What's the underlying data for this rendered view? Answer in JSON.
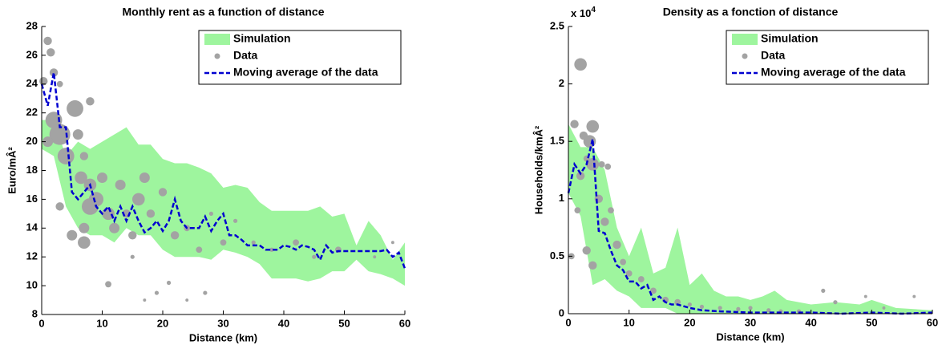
{
  "chart_data": [
    {
      "type": "combo",
      "title": "Monthly rent as a function of distance",
      "xlabel": "Distance (km)",
      "ylabel": "Euro/mÂ²",
      "xlim": [
        0,
        60
      ],
      "xticks": [
        0,
        10,
        20,
        30,
        40,
        50,
        60
      ],
      "ylim": [
        8,
        28
      ],
      "yticks": [
        8,
        10,
        12,
        14,
        16,
        18,
        20,
        22,
        24,
        26,
        28
      ],
      "legend": "upper right",
      "series": [
        {
          "name": "Simulation",
          "kind": "band",
          "color": "#9ef59e",
          "x": [
            0,
            2,
            4,
            6,
            8,
            10,
            12,
            14,
            16,
            18,
            20,
            22,
            24,
            26,
            28,
            30,
            32,
            34,
            36,
            38,
            40,
            42,
            44,
            46,
            48,
            50,
            52,
            54,
            56,
            58,
            60
          ],
          "lower": [
            19.5,
            19,
            15.5,
            14,
            13.5,
            13.5,
            13,
            14,
            13.5,
            13.5,
            12.5,
            12,
            12,
            12,
            11.8,
            12.5,
            12.3,
            12,
            11.5,
            10.5,
            10.5,
            10.5,
            10.3,
            10.5,
            11,
            11,
            11.8,
            11,
            10.8,
            10.5,
            10
          ],
          "upper": [
            21.5,
            21.5,
            19,
            20,
            19.5,
            20,
            20.5,
            21,
            19.8,
            19.8,
            18.8,
            18.5,
            18.5,
            18.2,
            17.8,
            16.8,
            17,
            16.8,
            15.8,
            15.2,
            15.2,
            15.2,
            15.2,
            15.5,
            14.8,
            15,
            12.8,
            14.5,
            13.5,
            11.8,
            13
          ]
        },
        {
          "name": "Data",
          "kind": "scatter",
          "color": "#a3a3a3",
          "x": [
            1,
            1.5,
            0.3,
            2,
            3,
            2,
            3,
            4,
            5.5,
            1,
            6,
            7,
            8,
            6.5,
            8,
            7,
            7,
            9,
            10,
            11,
            12,
            13,
            14,
            15,
            16,
            17,
            18,
            11,
            20,
            22,
            24,
            19,
            21,
            26,
            28,
            30,
            32,
            35,
            38,
            42,
            45,
            49,
            55,
            58,
            3,
            5,
            8,
            17,
            24,
            27,
            15
          ],
          "values": [
            27,
            26.2,
            24.2,
            24.8,
            24,
            21.5,
            20.5,
            19,
            22.3,
            20,
            20.5,
            19,
            22.8,
            17.5,
            15.5,
            14,
            13,
            16,
            17.5,
            15,
            14,
            17,
            15,
            13.5,
            16,
            17.5,
            15,
            10.1,
            16.5,
            13.5,
            14,
            9.5,
            10.2,
            12.5,
            15,
            13,
            14.5,
            13,
            12.5,
            13,
            12,
            12.5,
            12,
            13,
            15.5,
            13.5,
            17,
            9,
            9,
            9.5,
            12
          ],
          "sizes": [
            4,
            4,
            4,
            4,
            3,
            8,
            10,
            8,
            8,
            5,
            5,
            4,
            4,
            6,
            8,
            5,
            6,
            7,
            5,
            6,
            5,
            5,
            4,
            4,
            6,
            5,
            4,
            3,
            4,
            4,
            3,
            2,
            2,
            3,
            2,
            3,
            2,
            2,
            2,
            3,
            2,
            3,
            1.5,
            1.5,
            4,
            5,
            6,
            1.5,
            1.5,
            2,
            2
          ]
        },
        {
          "name": "Moving average of the data",
          "kind": "line",
          "color": "#0000d0",
          "x": [
            0,
            1,
            2,
            3,
            4,
            5,
            6,
            7,
            8,
            9,
            10,
            11,
            12,
            13,
            14,
            15,
            16,
            17,
            18,
            19,
            20,
            21,
            22,
            23,
            24,
            25,
            26,
            27,
            28,
            29,
            30,
            31,
            32,
            33,
            34,
            35,
            36,
            37,
            38,
            39,
            40,
            41,
            42,
            43,
            44,
            45,
            46,
            47,
            48,
            49,
            50,
            52,
            54,
            56,
            57,
            58,
            59,
            60
          ],
          "values": [
            24,
            22.5,
            24.8,
            21,
            21,
            16.5,
            16,
            16.5,
            17,
            15.5,
            15,
            15.5,
            14.5,
            15.5,
            14.5,
            15.5,
            14.5,
            13.7,
            14,
            14.5,
            13.8,
            14.5,
            16,
            14.5,
            14,
            14,
            14,
            14.8,
            13.8,
            14.5,
            15,
            13.5,
            13.5,
            13.2,
            12.8,
            12.8,
            12.8,
            12.5,
            12.5,
            12.5,
            12.8,
            12.7,
            12.5,
            12.8,
            12.7,
            12.5,
            11.8,
            12.8,
            12.3,
            12.4,
            12.4,
            12.4,
            12.4,
            12.4,
            12.5,
            12,
            12.3,
            11.2
          ]
        }
      ]
    },
    {
      "type": "combo",
      "title": "Density as a fonction of distance",
      "xlabel": "Distance (km)",
      "ylabel": "Households/kmÂ²",
      "y_exponent": {
        "base": "x 10",
        "power": "4"
      },
      "xlim": [
        0,
        60
      ],
      "xticks": [
        0,
        10,
        20,
        30,
        40,
        50,
        60
      ],
      "ylim": [
        0,
        2.5
      ],
      "yticks": [
        0,
        0.5,
        1,
        1.5,
        2,
        2.5
      ],
      "legend": "upper right",
      "series": [
        {
          "name": "Simulation",
          "kind": "band",
          "color": "#9ef59e",
          "x": [
            0,
            2,
            4,
            6,
            8,
            10,
            12,
            14,
            16,
            18,
            20,
            22,
            24,
            26,
            28,
            30,
            32,
            34,
            36,
            40,
            44,
            48,
            50,
            54,
            60
          ],
          "lower": [
            1.05,
            0.85,
            0.25,
            0.3,
            0.2,
            0.15,
            0.05,
            0.05,
            0.05,
            0,
            0,
            0,
            0,
            0,
            0,
            0,
            0,
            0,
            0,
            0,
            0,
            0,
            0,
            0,
            0
          ],
          "upper": [
            1.65,
            1.45,
            1.45,
            1.25,
            0.75,
            0.5,
            0.75,
            0.35,
            0.4,
            0.75,
            0.25,
            0.35,
            0.2,
            0.15,
            0.15,
            0.12,
            0.15,
            0.2,
            0.12,
            0.08,
            0.1,
            0.08,
            0.12,
            0.05,
            0.03
          ]
        },
        {
          "name": "Data",
          "kind": "scatter",
          "color": "#a3a3a3",
          "x": [
            1,
            2,
            3.5,
            4,
            4,
            2.5,
            3,
            5.5,
            6.5,
            2,
            6,
            7,
            8,
            3,
            4,
            0.5,
            9,
            10,
            12,
            14,
            16,
            18,
            20,
            22,
            25,
            28,
            30,
            33,
            35,
            38,
            42,
            44,
            49,
            52,
            57,
            1.5,
            5
          ],
          "values": [
            1.65,
            2.17,
            1.5,
            1.63,
            1.3,
            1.55,
            1.35,
            1.3,
            1.28,
            1.2,
            0.8,
            0.9,
            0.6,
            0.55,
            0.42,
            0.5,
            0.45,
            0.35,
            0.3,
            0.2,
            0.12,
            0.1,
            0.08,
            0.06,
            0.05,
            0.04,
            0.05,
            0.03,
            0.02,
            0.02,
            0.2,
            0.1,
            0.15,
            0.05,
            0.15,
            0.9,
            1
          ],
          "sizes": [
            4,
            6,
            6,
            6,
            6,
            4,
            3,
            3,
            3,
            4,
            4,
            3,
            4,
            4,
            4,
            3,
            3,
            3,
            3,
            3,
            3,
            3,
            2,
            2,
            2,
            2,
            2,
            2,
            2,
            2,
            2,
            2,
            1.5,
            1.5,
            1.5,
            3,
            4
          ]
        },
        {
          "name": "Moving average of the data",
          "kind": "line",
          "color": "#0000d0",
          "x": [
            0,
            1,
            2,
            3,
            4,
            5,
            6,
            7,
            8,
            9,
            10,
            11,
            12,
            13,
            14,
            15,
            16,
            17,
            18,
            20,
            22,
            25,
            30,
            35,
            40,
            45,
            50,
            55,
            60
          ],
          "values": [
            1.05,
            1.3,
            1.22,
            1.3,
            1.52,
            0.72,
            0.7,
            0.55,
            0.42,
            0.38,
            0.28,
            0.28,
            0.22,
            0.25,
            0.12,
            0.15,
            0.1,
            0.08,
            0.08,
            0.05,
            0.03,
            0.02,
            0.01,
            0.01,
            0.01,
            0,
            0.01,
            0,
            0.01
          ]
        }
      ]
    }
  ]
}
